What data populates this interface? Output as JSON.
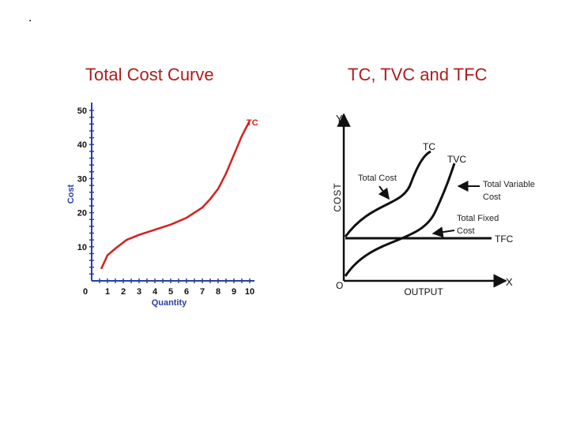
{
  "slide": {
    "dot": ".",
    "title_left": "Total Cost Curve",
    "title_right": "TC, TVC and TFC"
  },
  "colors": {
    "title": "#b01c1c",
    "tc_curve": "#d42020",
    "axis_label": "#2a3fa8"
  },
  "chart_data": [
    {
      "type": "line",
      "title": "Total Cost Curve",
      "xlabel": "Quantity",
      "ylabel": "Cost",
      "xlim": [
        0,
        10
      ],
      "ylim": [
        0,
        50
      ],
      "x_ticks": [
        "0",
        "1",
        "2",
        "3",
        "4",
        "5",
        "6",
        "7",
        "8",
        "9",
        "10"
      ],
      "y_ticks": [
        "10",
        "20",
        "30",
        "40",
        "50"
      ],
      "series": [
        {
          "name": "TC",
          "x": [
            0.6,
            1.0,
            1.5,
            2.2,
            3.0,
            4.0,
            5.0,
            6.0,
            7.0,
            7.5,
            8.0,
            8.5,
            9.0,
            9.5,
            10.0
          ],
          "y": [
            3.5,
            7.5,
            9.5,
            12.0,
            13.5,
            15.0,
            16.5,
            18.5,
            21.5,
            24.0,
            27.0,
            31.5,
            37.0,
            42.5,
            47.0
          ]
        }
      ],
      "grid": false
    },
    {
      "type": "line",
      "title": "TC, TVC and TFC",
      "xlabel": "OUTPUT",
      "ylabel": "COST",
      "axis_names": {
        "x": "X",
        "y": "Y",
        "origin": "O"
      },
      "curve_labels": {
        "tc": "TC",
        "tvc": "TVC",
        "tfc": "TFC"
      },
      "annotations": {
        "total_cost": "Total Cost",
        "total_variable_cost": [
          "Total Variable",
          "Cost"
        ],
        "total_fixed_cost": [
          "Total Fixed",
          "Cost"
        ]
      },
      "qualitative": true
    }
  ]
}
